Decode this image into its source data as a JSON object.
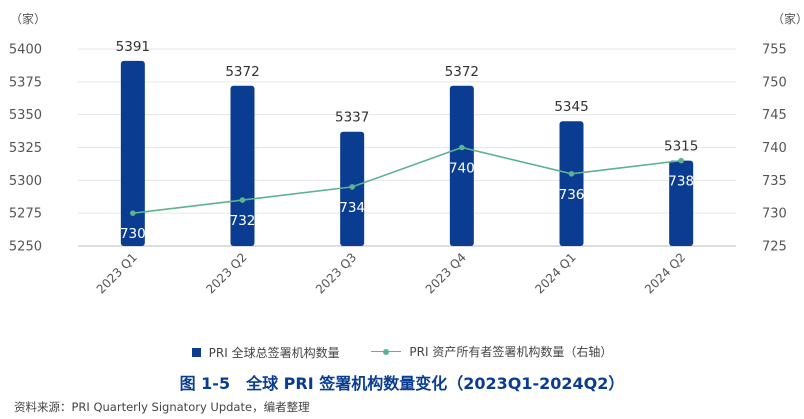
{
  "chart_data": {
    "type": "bar",
    "categories": [
      "2023 Q1",
      "2023 Q2",
      "2023 Q3",
      "2023 Q4",
      "2024 Q1",
      "2024 Q2"
    ],
    "series": [
      {
        "name": "PRI 全球总签署机构数量",
        "type": "bar",
        "axis": "left",
        "values": [
          5391,
          5372,
          5337,
          5372,
          5345,
          5315
        ],
        "color": "#0a3d91"
      },
      {
        "name": "PRI 资产所有者签署机构数量（右轴）",
        "type": "line",
        "axis": "right",
        "values": [
          730,
          732,
          734,
          740,
          736,
          738
        ],
        "color": "#5cb38e"
      }
    ],
    "y_left": {
      "unit": "（家）",
      "ylim": [
        5250,
        5400
      ],
      "ticks": [
        5250,
        5275,
        5300,
        5325,
        5350,
        5375,
        5400
      ]
    },
    "y_right": {
      "unit": "（家）",
      "ylim": [
        725,
        755
      ],
      "ticks": [
        725,
        730,
        735,
        740,
        745,
        750,
        755
      ]
    },
    "grid": true,
    "legend_position": "bottom"
  },
  "legend": {
    "bar_label": "PRI 全球总签署机构数量",
    "line_label": "PRI 资产所有者签署机构数量（右轴）"
  },
  "caption": "图 1-5　全球 PRI 签署机构数量变化（2023Q1-2024Q2）",
  "source": "资料来源：PRI Quarterly Signatory Update，编者整理"
}
